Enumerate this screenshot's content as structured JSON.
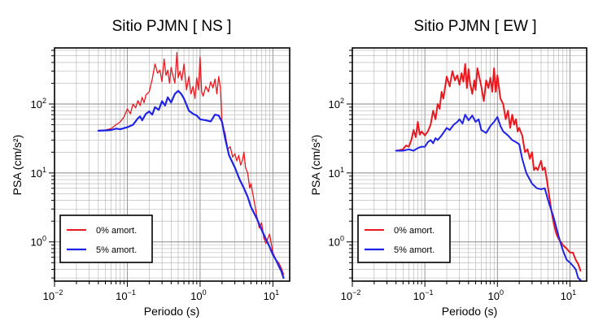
{
  "chart_data": [
    {
      "type": "line",
      "title": "Sitio PJMN [ NS ]",
      "xlabel": "Periodo (s)",
      "ylabel": "PSA (cm/s²)",
      "xscale": "log",
      "yscale": "log",
      "xlim": [
        0.01,
        17
      ],
      "ylim": [
        0.27,
        650
      ],
      "grid": true,
      "legend_placement": "bottom-left",
      "x_ticks": [
        {
          "base": "10",
          "exp": "−2"
        },
        {
          "base": "10",
          "exp": "−1"
        },
        {
          "base": "10",
          "exp": "0"
        },
        {
          "base": "10",
          "exp": "1"
        }
      ],
      "y_ticks": [
        {
          "base": "10",
          "exp": "0"
        },
        {
          "base": "10",
          "exp": "1"
        },
        {
          "base": "10",
          "exp": "2"
        }
      ],
      "series": [
        {
          "name": "0% amort.",
          "color": "#e8191f",
          "width": 1.3,
          "points": [
            [
              0.04,
              41
            ],
            [
              0.05,
              42
            ],
            [
              0.06,
              44
            ],
            [
              0.07,
              50
            ],
            [
              0.08,
              55
            ],
            [
              0.09,
              65
            ],
            [
              0.1,
              85
            ],
            [
              0.11,
              72
            ],
            [
              0.12,
              100
            ],
            [
              0.13,
              88
            ],
            [
              0.14,
              112
            ],
            [
              0.15,
              95
            ],
            [
              0.16,
              125
            ],
            [
              0.17,
              104
            ],
            [
              0.18,
              135
            ],
            [
              0.2,
              150
            ],
            [
              0.22,
              230
            ],
            [
              0.24,
              380
            ],
            [
              0.26,
              280
            ],
            [
              0.28,
              310
            ],
            [
              0.3,
              210
            ],
            [
              0.32,
              450
            ],
            [
              0.34,
              260
            ],
            [
              0.36,
              310
            ],
            [
              0.38,
              200
            ],
            [
              0.4,
              340
            ],
            [
              0.42,
              270
            ],
            [
              0.45,
              200
            ],
            [
              0.48,
              560
            ],
            [
              0.5,
              240
            ],
            [
              0.53,
              300
            ],
            [
              0.56,
              220
            ],
            [
              0.6,
              380
            ],
            [
              0.65,
              160
            ],
            [
              0.7,
              250
            ],
            [
              0.75,
              140
            ],
            [
              0.8,
              180
            ],
            [
              0.85,
              120
            ],
            [
              0.9,
              240
            ],
            [
              0.95,
              160
            ],
            [
              1.0,
              480
            ],
            [
              1.05,
              150
            ],
            [
              1.1,
              130
            ],
            [
              1.2,
              180
            ],
            [
              1.3,
              150
            ],
            [
              1.4,
              210
            ],
            [
              1.5,
              170
            ],
            [
              1.6,
              230
            ],
            [
              1.7,
              140
            ],
            [
              1.8,
              250
            ],
            [
              1.9,
              170
            ],
            [
              2.0,
              50
            ],
            [
              2.2,
              38
            ],
            [
              2.4,
              22
            ],
            [
              2.6,
              24
            ],
            [
              2.8,
              17
            ],
            [
              3.0,
              19
            ],
            [
              3.2,
              15
            ],
            [
              3.4,
              18
            ],
            [
              3.6,
              13
            ],
            [
              3.8,
              15
            ],
            [
              4.0,
              20
            ],
            [
              4.2,
              12
            ],
            [
              4.5,
              10
            ],
            [
              4.8,
              6
            ],
            [
              5.0,
              7
            ],
            [
              5.5,
              4
            ],
            [
              6.0,
              2.4
            ],
            [
              6.5,
              1.6
            ],
            [
              7.0,
              1.9
            ],
            [
              7.5,
              1.15
            ],
            [
              8.0,
              0.95
            ],
            [
              9.0,
              1.3
            ],
            [
              10.0,
              0.7
            ],
            [
              11.0,
              0.55
            ],
            [
              12.0,
              0.5
            ],
            [
              13.0,
              0.42
            ],
            [
              14.0,
              0.34
            ]
          ]
        },
        {
          "name": "5% amort.",
          "color": "#1f23e8",
          "width": 2.2,
          "points": [
            [
              0.04,
              41
            ],
            [
              0.06,
              42
            ],
            [
              0.07,
              44
            ],
            [
              0.08,
              43
            ],
            [
              0.1,
              46
            ],
            [
              0.12,
              50
            ],
            [
              0.14,
              62
            ],
            [
              0.15,
              66
            ],
            [
              0.16,
              58
            ],
            [
              0.18,
              72
            ],
            [
              0.2,
              78
            ],
            [
              0.22,
              70
            ],
            [
              0.24,
              90
            ],
            [
              0.27,
              82
            ],
            [
              0.3,
              110
            ],
            [
              0.33,
              95
            ],
            [
              0.36,
              125
            ],
            [
              0.4,
              105
            ],
            [
              0.45,
              140
            ],
            [
              0.5,
              155
            ],
            [
              0.55,
              140
            ],
            [
              0.6,
              120
            ],
            [
              0.7,
              80
            ],
            [
              0.8,
              72
            ],
            [
              0.9,
              68
            ],
            [
              1.0,
              60
            ],
            [
              1.2,
              58
            ],
            [
              1.4,
              56
            ],
            [
              1.6,
              70
            ],
            [
              1.8,
              68
            ],
            [
              2.0,
              55
            ],
            [
              2.2,
              32
            ],
            [
              2.5,
              18
            ],
            [
              3.0,
              12
            ],
            [
              3.5,
              8
            ],
            [
              4.0,
              6
            ],
            [
              4.5,
              4.5
            ],
            [
              5.0,
              3.2
            ],
            [
              6.0,
              2.2
            ],
            [
              7.0,
              1.5
            ],
            [
              8.0,
              1.1
            ],
            [
              9.0,
              0.85
            ],
            [
              10.0,
              0.65
            ],
            [
              11.0,
              0.55
            ],
            [
              12.0,
              0.45
            ],
            [
              13.0,
              0.38
            ],
            [
              14.0,
              0.3
            ]
          ]
        }
      ]
    },
    {
      "type": "line",
      "title": "Sitio PJMN [ EW ]",
      "xlabel": "Periodo (s)",
      "ylabel": "PSA (cm/s²)",
      "xscale": "log",
      "yscale": "log",
      "xlim": [
        0.01,
        17
      ],
      "ylim": [
        0.27,
        650
      ],
      "grid": true,
      "legend_placement": "bottom-left",
      "x_ticks": [
        {
          "base": "10",
          "exp": "−2"
        },
        {
          "base": "10",
          "exp": "−1"
        },
        {
          "base": "10",
          "exp": "0"
        },
        {
          "base": "10",
          "exp": "1"
        }
      ],
      "y_ticks": [
        {
          "base": "10",
          "exp": "0"
        },
        {
          "base": "10",
          "exp": "1"
        },
        {
          "base": "10",
          "exp": "2"
        }
      ],
      "series": [
        {
          "name": "0% amort.",
          "color": "#e8191f",
          "width": 2.0,
          "points": [
            [
              0.04,
              21
            ],
            [
              0.045,
              21.5
            ],
            [
              0.05,
              22
            ],
            [
              0.055,
              25
            ],
            [
              0.06,
              24
            ],
            [
              0.065,
              30
            ],
            [
              0.07,
              42
            ],
            [
              0.075,
              33
            ],
            [
              0.08,
              55
            ],
            [
              0.085,
              36
            ],
            [
              0.09,
              40
            ],
            [
              0.1,
              35
            ],
            [
              0.11,
              40
            ],
            [
              0.12,
              50
            ],
            [
              0.13,
              80
            ],
            [
              0.14,
              60
            ],
            [
              0.15,
              100
            ],
            [
              0.16,
              85
            ],
            [
              0.17,
              150
            ],
            [
              0.18,
              120
            ],
            [
              0.2,
              250
            ],
            [
              0.22,
              180
            ],
            [
              0.24,
              300
            ],
            [
              0.26,
              220
            ],
            [
              0.28,
              260
            ],
            [
              0.3,
              190
            ],
            [
              0.32,
              280
            ],
            [
              0.34,
              210
            ],
            [
              0.36,
              380
            ],
            [
              0.38,
              170
            ],
            [
              0.4,
              320
            ],
            [
              0.42,
              200
            ],
            [
              0.45,
              140
            ],
            [
              0.48,
              220
            ],
            [
              0.5,
              160
            ],
            [
              0.53,
              330
            ],
            [
              0.56,
              250
            ],
            [
              0.6,
              180
            ],
            [
              0.65,
              110
            ],
            [
              0.7,
              220
            ],
            [
              0.75,
              170
            ],
            [
              0.8,
              240
            ],
            [
              0.85,
              150
            ],
            [
              0.9,
              330
            ],
            [
              0.95,
              150
            ],
            [
              1.0,
              260
            ],
            [
              1.1,
              120
            ],
            [
              1.2,
              100
            ],
            [
              1.3,
              60
            ],
            [
              1.4,
              80
            ],
            [
              1.5,
              45
            ],
            [
              1.6,
              70
            ],
            [
              1.7,
              50
            ],
            [
              1.8,
              60
            ],
            [
              1.9,
              40
            ],
            [
              2.0,
              45
            ],
            [
              2.2,
              35
            ],
            [
              2.4,
              20
            ],
            [
              2.6,
              22
            ],
            [
              2.8,
              16
            ],
            [
              3.0,
              20
            ],
            [
              3.2,
              11
            ],
            [
              3.4,
              12
            ],
            [
              3.6,
              11
            ],
            [
              3.8,
              13
            ],
            [
              4.0,
              15
            ],
            [
              4.2,
              11
            ],
            [
              4.5,
              12
            ],
            [
              4.8,
              8
            ],
            [
              5.0,
              6
            ],
            [
              5.5,
              3
            ],
            [
              6.0,
              1.8
            ],
            [
              6.5,
              1.3
            ],
            [
              7.0,
              1.1
            ],
            [
              8.0,
              0.9
            ],
            [
              9.0,
              0.8
            ],
            [
              10.0,
              0.7
            ],
            [
              11.0,
              0.7
            ],
            [
              12.0,
              0.55
            ],
            [
              13.0,
              0.48
            ],
            [
              14.0,
              0.38
            ]
          ]
        },
        {
          "name": "5% amort.",
          "color": "#1f23e8",
          "width": 2.0,
          "points": [
            [
              0.04,
              21
            ],
            [
              0.05,
              21
            ],
            [
              0.06,
              22
            ],
            [
              0.07,
              21
            ],
            [
              0.08,
              23
            ],
            [
              0.09,
              24
            ],
            [
              0.1,
              24
            ],
            [
              0.11,
              28
            ],
            [
              0.12,
              30
            ],
            [
              0.13,
              27
            ],
            [
              0.14,
              32
            ],
            [
              0.15,
              30
            ],
            [
              0.17,
              35
            ],
            [
              0.2,
              45
            ],
            [
              0.22,
              42
            ],
            [
              0.25,
              50
            ],
            [
              0.28,
              55
            ],
            [
              0.3,
              60
            ],
            [
              0.33,
              52
            ],
            [
              0.36,
              70
            ],
            [
              0.4,
              58
            ],
            [
              0.45,
              68
            ],
            [
              0.5,
              55
            ],
            [
              0.55,
              60
            ],
            [
              0.6,
              42
            ],
            [
              0.7,
              38
            ],
            [
              0.8,
              48
            ],
            [
              0.9,
              55
            ],
            [
              1.0,
              65
            ],
            [
              1.1,
              48
            ],
            [
              1.2,
              40
            ],
            [
              1.4,
              35
            ],
            [
              1.6,
              30
            ],
            [
              1.8,
              28
            ],
            [
              2.0,
              26
            ],
            [
              2.2,
              16
            ],
            [
              2.5,
              10
            ],
            [
              3.0,
              7
            ],
            [
              3.5,
              6
            ],
            [
              4.0,
              5.8
            ],
            [
              4.5,
              6
            ],
            [
              5.0,
              4
            ],
            [
              6.0,
              2.2
            ],
            [
              7.0,
              1.2
            ],
            [
              8.0,
              0.75
            ],
            [
              9.0,
              0.55
            ],
            [
              10.0,
              0.5
            ],
            [
              11.0,
              0.45
            ],
            [
              12.0,
              0.4
            ],
            [
              13.0,
              0.3
            ],
            [
              14.0,
              0.28
            ]
          ]
        }
      ]
    }
  ]
}
